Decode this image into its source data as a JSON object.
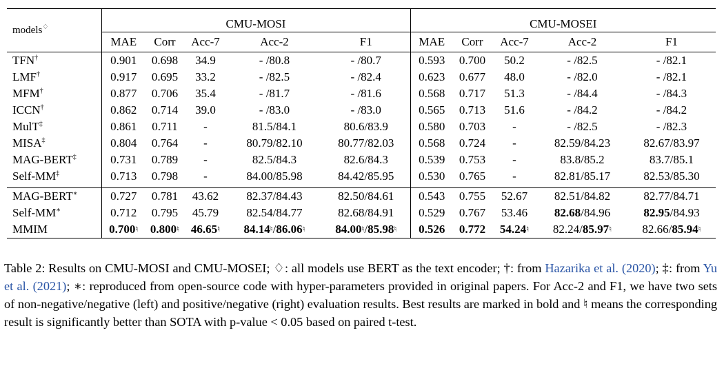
{
  "table": {
    "model_header": "models",
    "model_header_sup": "♢",
    "groups": [
      "CMU-MOSI",
      "CMU-MOSEI"
    ],
    "columns": [
      "MAE",
      "Corr",
      "Acc-7",
      "Acc-2",
      "F1",
      "MAE",
      "Corr",
      "Acc-7",
      "Acc-2",
      "F1"
    ],
    "sections": [
      [
        {
          "model": "TFN",
          "sup": "†",
          "cells": [
            {
              "t": "0.901"
            },
            {
              "t": "0.698"
            },
            {
              "t": "34.9"
            },
            {
              "t": "- /80.8"
            },
            {
              "t": "- /80.7"
            },
            {
              "t": "0.593"
            },
            {
              "t": "0.700"
            },
            {
              "t": "50.2"
            },
            {
              "t": "- /82.5"
            },
            {
              "t": "- /82.1"
            }
          ]
        },
        {
          "model": "LMF",
          "sup": "†",
          "cells": [
            {
              "t": "0.917"
            },
            {
              "t": "0.695"
            },
            {
              "t": "33.2"
            },
            {
              "t": "- /82.5"
            },
            {
              "t": "- /82.4"
            },
            {
              "t": "0.623"
            },
            {
              "t": "0.677"
            },
            {
              "t": "48.0"
            },
            {
              "t": "- /82.0"
            },
            {
              "t": "- /82.1"
            }
          ]
        },
        {
          "model": "MFM",
          "sup": "†",
          "cells": [
            {
              "t": "0.877"
            },
            {
              "t": "0.706"
            },
            {
              "t": "35.4"
            },
            {
              "t": "- /81.7"
            },
            {
              "t": "- /81.6"
            },
            {
              "t": "0.568"
            },
            {
              "t": "0.717"
            },
            {
              "t": "51.3"
            },
            {
              "t": "- /84.4"
            },
            {
              "t": "- /84.3"
            }
          ]
        },
        {
          "model": "ICCN",
          "sup": "†",
          "cells": [
            {
              "t": "0.862"
            },
            {
              "t": "0.714"
            },
            {
              "t": "39.0"
            },
            {
              "t": "- /83.0"
            },
            {
              "t": "- /83.0"
            },
            {
              "t": "0.565"
            },
            {
              "t": "0.713"
            },
            {
              "t": "51.6"
            },
            {
              "t": "- /84.2"
            },
            {
              "t": "- /84.2"
            }
          ]
        },
        {
          "model": "MulT",
          "sup": "‡",
          "cells": [
            {
              "t": "0.861"
            },
            {
              "t": "0.711"
            },
            {
              "t": "-"
            },
            {
              "t": "81.5/84.1"
            },
            {
              "t": "80.6/83.9"
            },
            {
              "t": "0.580"
            },
            {
              "t": "0.703"
            },
            {
              "t": "-"
            },
            {
              "t": "- /82.5"
            },
            {
              "t": "- /82.3"
            }
          ]
        },
        {
          "model": "MISA",
          "sup": "‡",
          "cells": [
            {
              "t": "0.804"
            },
            {
              "t": "0.764"
            },
            {
              "t": "-"
            },
            {
              "t": "80.79/82.10"
            },
            {
              "t": "80.77/82.03"
            },
            {
              "t": "0.568"
            },
            {
              "t": "0.724"
            },
            {
              "t": "-"
            },
            {
              "t": "82.59/84.23"
            },
            {
              "t": "82.67/83.97"
            }
          ]
        },
        {
          "model": "MAG-BERT",
          "sup": "‡",
          "cells": [
            {
              "t": "0.731"
            },
            {
              "t": "0.789"
            },
            {
              "t": "-"
            },
            {
              "t": "82.5/84.3"
            },
            {
              "t": "82.6/84.3"
            },
            {
              "t": "0.539"
            },
            {
              "t": "0.753"
            },
            {
              "t": "-"
            },
            {
              "t": "83.8/85.2"
            },
            {
              "t": "83.7/85.1"
            }
          ]
        },
        {
          "model": "Self-MM",
          "sup": "‡",
          "cells": [
            {
              "t": "0.713"
            },
            {
              "t": "0.798"
            },
            {
              "t": "-"
            },
            {
              "t": "84.00/85.98"
            },
            {
              "t": "84.42/85.95"
            },
            {
              "t": "0.530"
            },
            {
              "t": "0.765"
            },
            {
              "t": "-"
            },
            {
              "t": "82.81/85.17"
            },
            {
              "t": "82.53/85.30"
            }
          ]
        }
      ],
      [
        {
          "model": "MAG-BERT",
          "sup": "∗",
          "cells": [
            {
              "t": "0.727"
            },
            {
              "t": "0.781"
            },
            {
              "t": "43.62"
            },
            {
              "t": "82.37/84.43"
            },
            {
              "t": "82.50/84.61"
            },
            {
              "t": "0.543"
            },
            {
              "t": "0.755"
            },
            {
              "t": "52.67"
            },
            {
              "t": "82.51/84.82"
            },
            {
              "t": "82.77/84.71"
            }
          ]
        },
        {
          "model": "Self-MM",
          "sup": "∗",
          "cells": [
            {
              "t": "0.712"
            },
            {
              "t": "0.795"
            },
            {
              "t": "45.79"
            },
            {
              "t": "82.54/84.77"
            },
            {
              "t": "82.68/84.91"
            },
            {
              "t": "0.529"
            },
            {
              "t": "0.767"
            },
            {
              "t": "53.46"
            },
            {
              "a": "82.68",
              "ab": true,
              "b": "84.96"
            },
            {
              "a": "82.95",
              "ab": true,
              "b": "84.93"
            }
          ]
        },
        {
          "model": "MMIM",
          "sup": "",
          "cells": [
            {
              "t": "0.700",
              "bold": true,
              "nat": "♮"
            },
            {
              "t": "0.800",
              "bold": true,
              "nat": "♮"
            },
            {
              "t": "46.65",
              "bold": true,
              "nat": "♮"
            },
            {
              "a": "84.14",
              "ab": true,
              "an": "♮",
              "b": "86.06",
              "bb": true,
              "bn": "♮"
            },
            {
              "a": "84.00",
              "ab": true,
              "an": "♮",
              "b": "85.98",
              "bb": true,
              "bn": "♮"
            },
            {
              "t": "0.526",
              "bold": true
            },
            {
              "t": "0.772",
              "bold": true
            },
            {
              "t": "54.24",
              "bold": true,
              "nat": "♮"
            },
            {
              "a": "82.24",
              "b": "85.97",
              "bb": true,
              "bn": "♮"
            },
            {
              "a": "82.66",
              "b": "85.94",
              "bb": true,
              "bn": "♮"
            }
          ]
        }
      ]
    ]
  },
  "caption": {
    "p1": "Table 2: Results on CMU-MOSI and CMU-MOSEI; ♢: all models use BERT as the text encoder; †: from ",
    "cite1": "Hazarika et al. (2020)",
    "p2": "; ‡: from ",
    "cite2": "Yu et al. (2021)",
    "p3": "; ∗: reproduced from open-source code with hyper-parameters provided in original papers. For Acc-2 and F1, we have two sets of non-negative/negative (left) and positive/negative (right) evaluation results. Best results are marked in bold and ♮ means the corresponding result is significantly better than SOTA with p-value < 0.05 based on paired t-test."
  }
}
